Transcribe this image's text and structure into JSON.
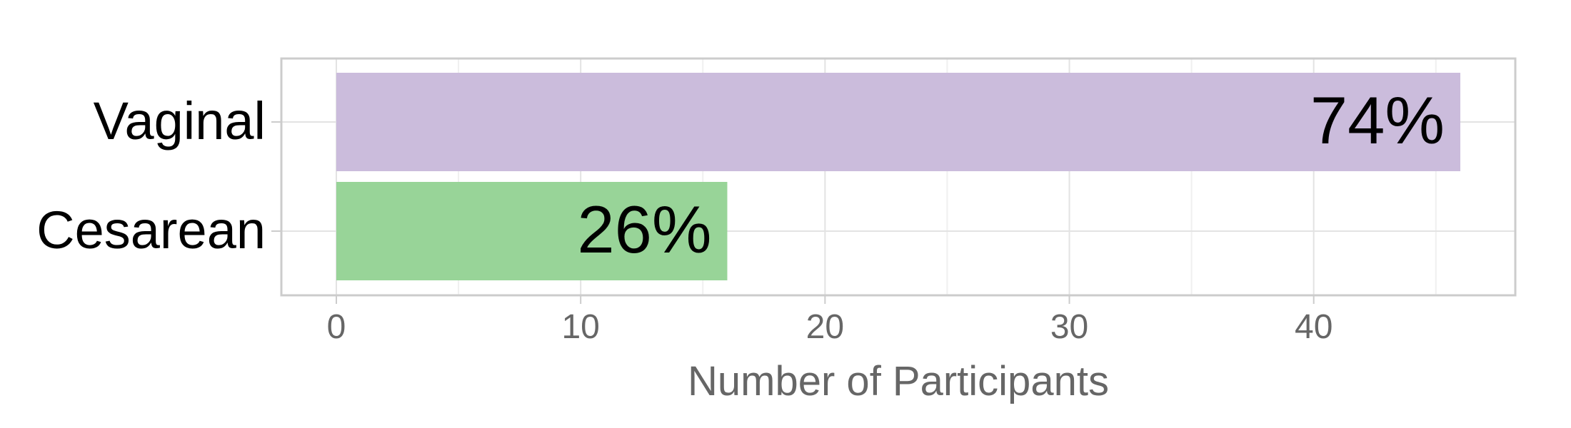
{
  "chart_data": {
    "type": "bar",
    "orientation": "horizontal",
    "categories": [
      "Vaginal",
      "Cesarean"
    ],
    "values": [
      46,
      16
    ],
    "data_labels": [
      "74%",
      "26%"
    ],
    "colors": [
      "#cbbcdc",
      "#98d498"
    ],
    "xlabel": "Number of Participants",
    "ylabel": "",
    "xlim": [
      -2.25,
      48.25
    ],
    "xticks": [
      0,
      10,
      20,
      30,
      40
    ],
    "xtick_labels": [
      "0",
      "10",
      "20",
      "30",
      "40"
    ],
    "grid": true
  }
}
